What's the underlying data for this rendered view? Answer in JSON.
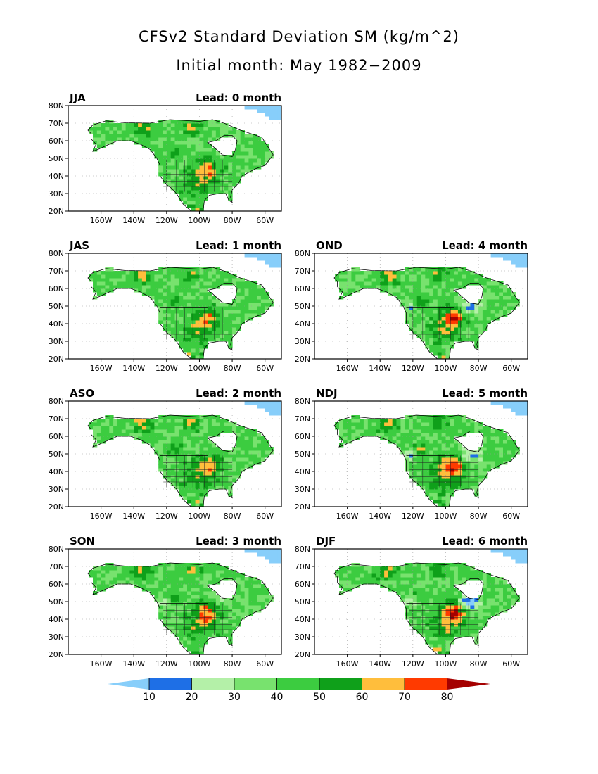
{
  "page": {
    "title": "CFSv2 Standard Deviation SM (kg/m^2)",
    "subtitle": "Initial month: May 1982−2009"
  },
  "chart_data": {
    "type": "heatmap",
    "title": "CFSv2 Standard Deviation SM (kg/m^2)",
    "subtitle": "Initial month: May 1982−2009",
    "lat_ticks": [
      "20N",
      "30N",
      "40N",
      "50N",
      "60N",
      "70N",
      "80N"
    ],
    "lon_ticks": [
      "160W",
      "140W",
      "120W",
      "100W",
      "80W",
      "60W"
    ],
    "lat_range": [
      20,
      80
    ],
    "lon_range": [
      -180,
      -50
    ],
    "grid": true,
    "panels": [
      {
        "season": "JJA",
        "lead": "Lead: 0 month"
      },
      {
        "season": "JAS",
        "lead": "Lead: 1 month"
      },
      {
        "season": "OND",
        "lead": "Lead: 4 month"
      },
      {
        "season": "ASO",
        "lead": "Lead: 2 month"
      },
      {
        "season": "NDJ",
        "lead": "Lead: 5 month"
      },
      {
        "season": "SON",
        "lead": "Lead: 3 month"
      },
      {
        "season": "DJF",
        "lead": "Lead: 6 month"
      }
    ],
    "colorbar": {
      "labels": [
        "10",
        "20",
        "30",
        "40",
        "50",
        "60",
        "70",
        "80"
      ],
      "colors": [
        "#87cefa",
        "#1e6fe6",
        "#b4f0a8",
        "#78e26e",
        "#3ccc40",
        "#0fa01a",
        "#ffbe3c",
        "#ff3a00",
        "#a50000"
      ]
    }
  }
}
